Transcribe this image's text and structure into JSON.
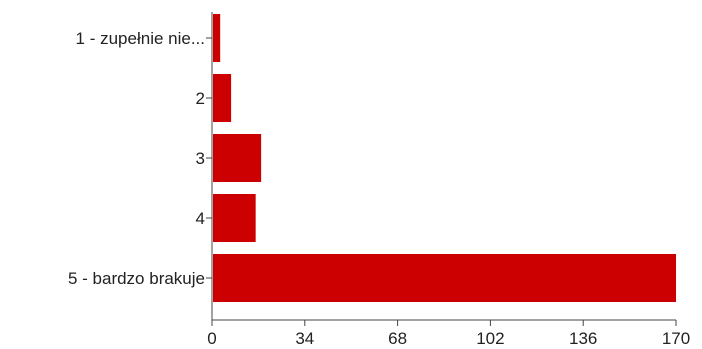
{
  "chart_data": {
    "type": "bar",
    "orientation": "horizontal",
    "categories": [
      "1  - zupełnie nie...",
      "2",
      "3",
      "4",
      "5 - bardzo brakuje"
    ],
    "values": [
      3,
      7,
      18,
      16,
      170
    ],
    "xlim": [
      0,
      170
    ],
    "xticks": [
      "0",
      "34",
      "68",
      "102",
      "136",
      "170"
    ],
    "title": "",
    "xlabel": "",
    "ylabel": "",
    "grid": false,
    "bar_color": "#cc0000"
  }
}
